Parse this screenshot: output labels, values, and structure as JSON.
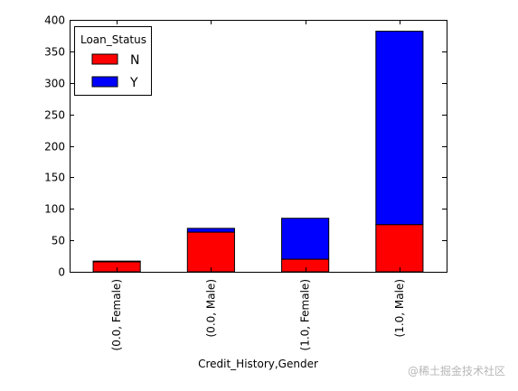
{
  "chart_data": {
    "type": "bar",
    "stacked": true,
    "categories": [
      "(0.0, Female)",
      "(0.0, Male)",
      "(1.0, Female)",
      "(1.0, Male)"
    ],
    "series": [
      {
        "name": "N",
        "values": [
          16,
          63,
          20,
          75
        ],
        "color": "#ff0000"
      },
      {
        "name": "Y",
        "values": [
          1,
          6,
          65,
          307
        ],
        "color": "#0000ff"
      }
    ],
    "xlabel": "Credit_History,Gender",
    "ylabel": "",
    "ylim": [
      0,
      400
    ],
    "yticks": [
      0,
      50,
      100,
      150,
      200,
      250,
      300,
      350,
      400
    ],
    "legend": {
      "title": "Loan_Status",
      "placement": "top-left"
    },
    "grid": false
  },
  "watermark": "@稀土掘金技术社区"
}
